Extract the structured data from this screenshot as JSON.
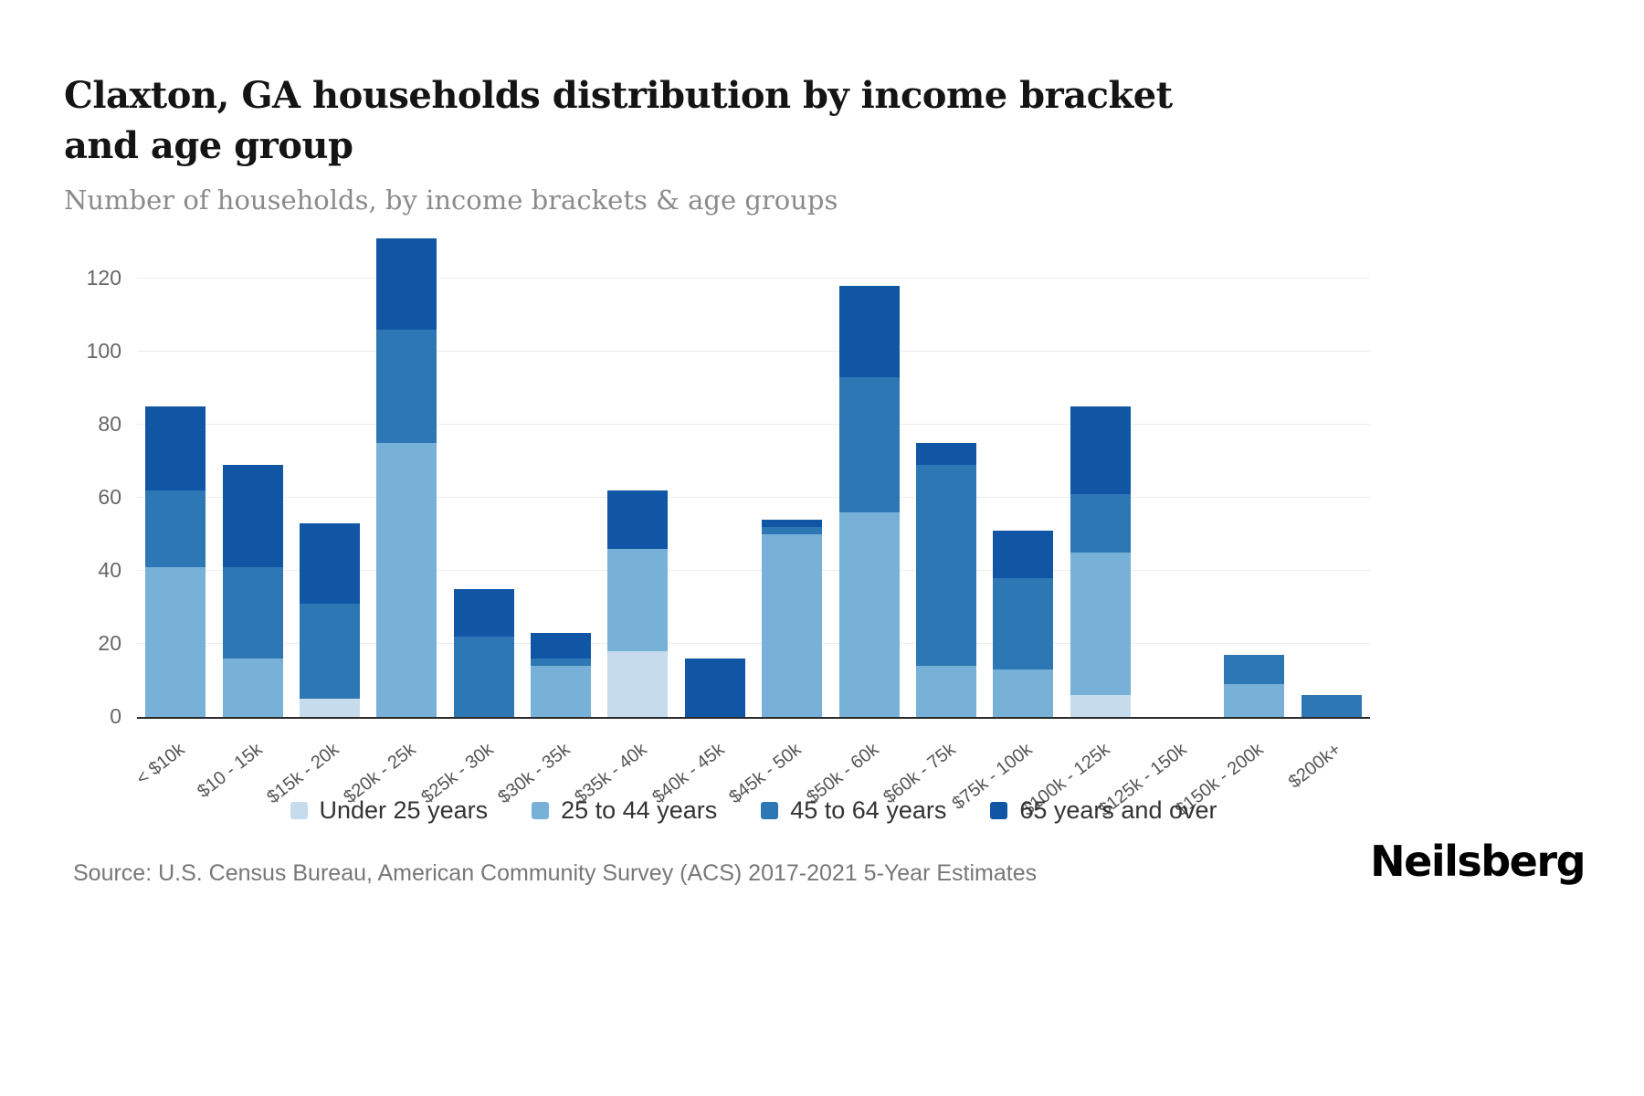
{
  "title": "Claxton, GA households distribution by income bracket and age group",
  "subtitle": "Number of households, by income brackets & age groups",
  "source": "Source: U.S. Census Bureau, American Community Survey (ACS) 2017-2021 5-Year Estimates",
  "brand": "Neilsberg",
  "chart_data": {
    "type": "bar",
    "stacked": true,
    "title": "Claxton, GA households distribution by income bracket and age group",
    "xlabel": "",
    "ylabel": "",
    "grid": true,
    "legend_position": "bottom",
    "categories": [
      "< $10k",
      "$10 - 15k",
      "$15k - 20k",
      "$20k - 25k",
      "$25k - 30k",
      "$30k - 35k",
      "$35k - 40k",
      "$40k - 45k",
      "$45k - 50k",
      "$50k - 60k",
      "$60k - 75k",
      "$75k - 100k",
      "$100k - 125k",
      "$125k - 150k",
      "$150k - 200k",
      "$200k+"
    ],
    "series": [
      {
        "name": "Under 25 years",
        "color": "#c6dcec",
        "values": [
          0,
          0,
          5,
          0,
          0,
          0,
          18,
          0,
          0,
          0,
          0,
          0,
          6,
          0,
          0,
          0
        ]
      },
      {
        "name": "25 to 44 years",
        "color": "#78b1d8",
        "values": [
          41,
          16,
          0,
          75,
          0,
          14,
          28,
          0,
          50,
          56,
          14,
          13,
          39,
          0,
          9,
          0
        ]
      },
      {
        "name": "45 to 64 years",
        "color": "#2e77b5",
        "values": [
          21,
          25,
          26,
          31,
          22,
          2,
          0,
          0,
          2,
          37,
          55,
          25,
          16,
          0,
          8,
          6
        ]
      },
      {
        "name": "65 years and over",
        "color": "#1156a5",
        "values": [
          23,
          28,
          22,
          25,
          13,
          7,
          16,
          16,
          2,
          25,
          6,
          13,
          24,
          0,
          0,
          0
        ]
      }
    ],
    "yticks": [
      0,
      20,
      40,
      60,
      80,
      100,
      120
    ],
    "ylim": [
      0,
      132
    ]
  }
}
